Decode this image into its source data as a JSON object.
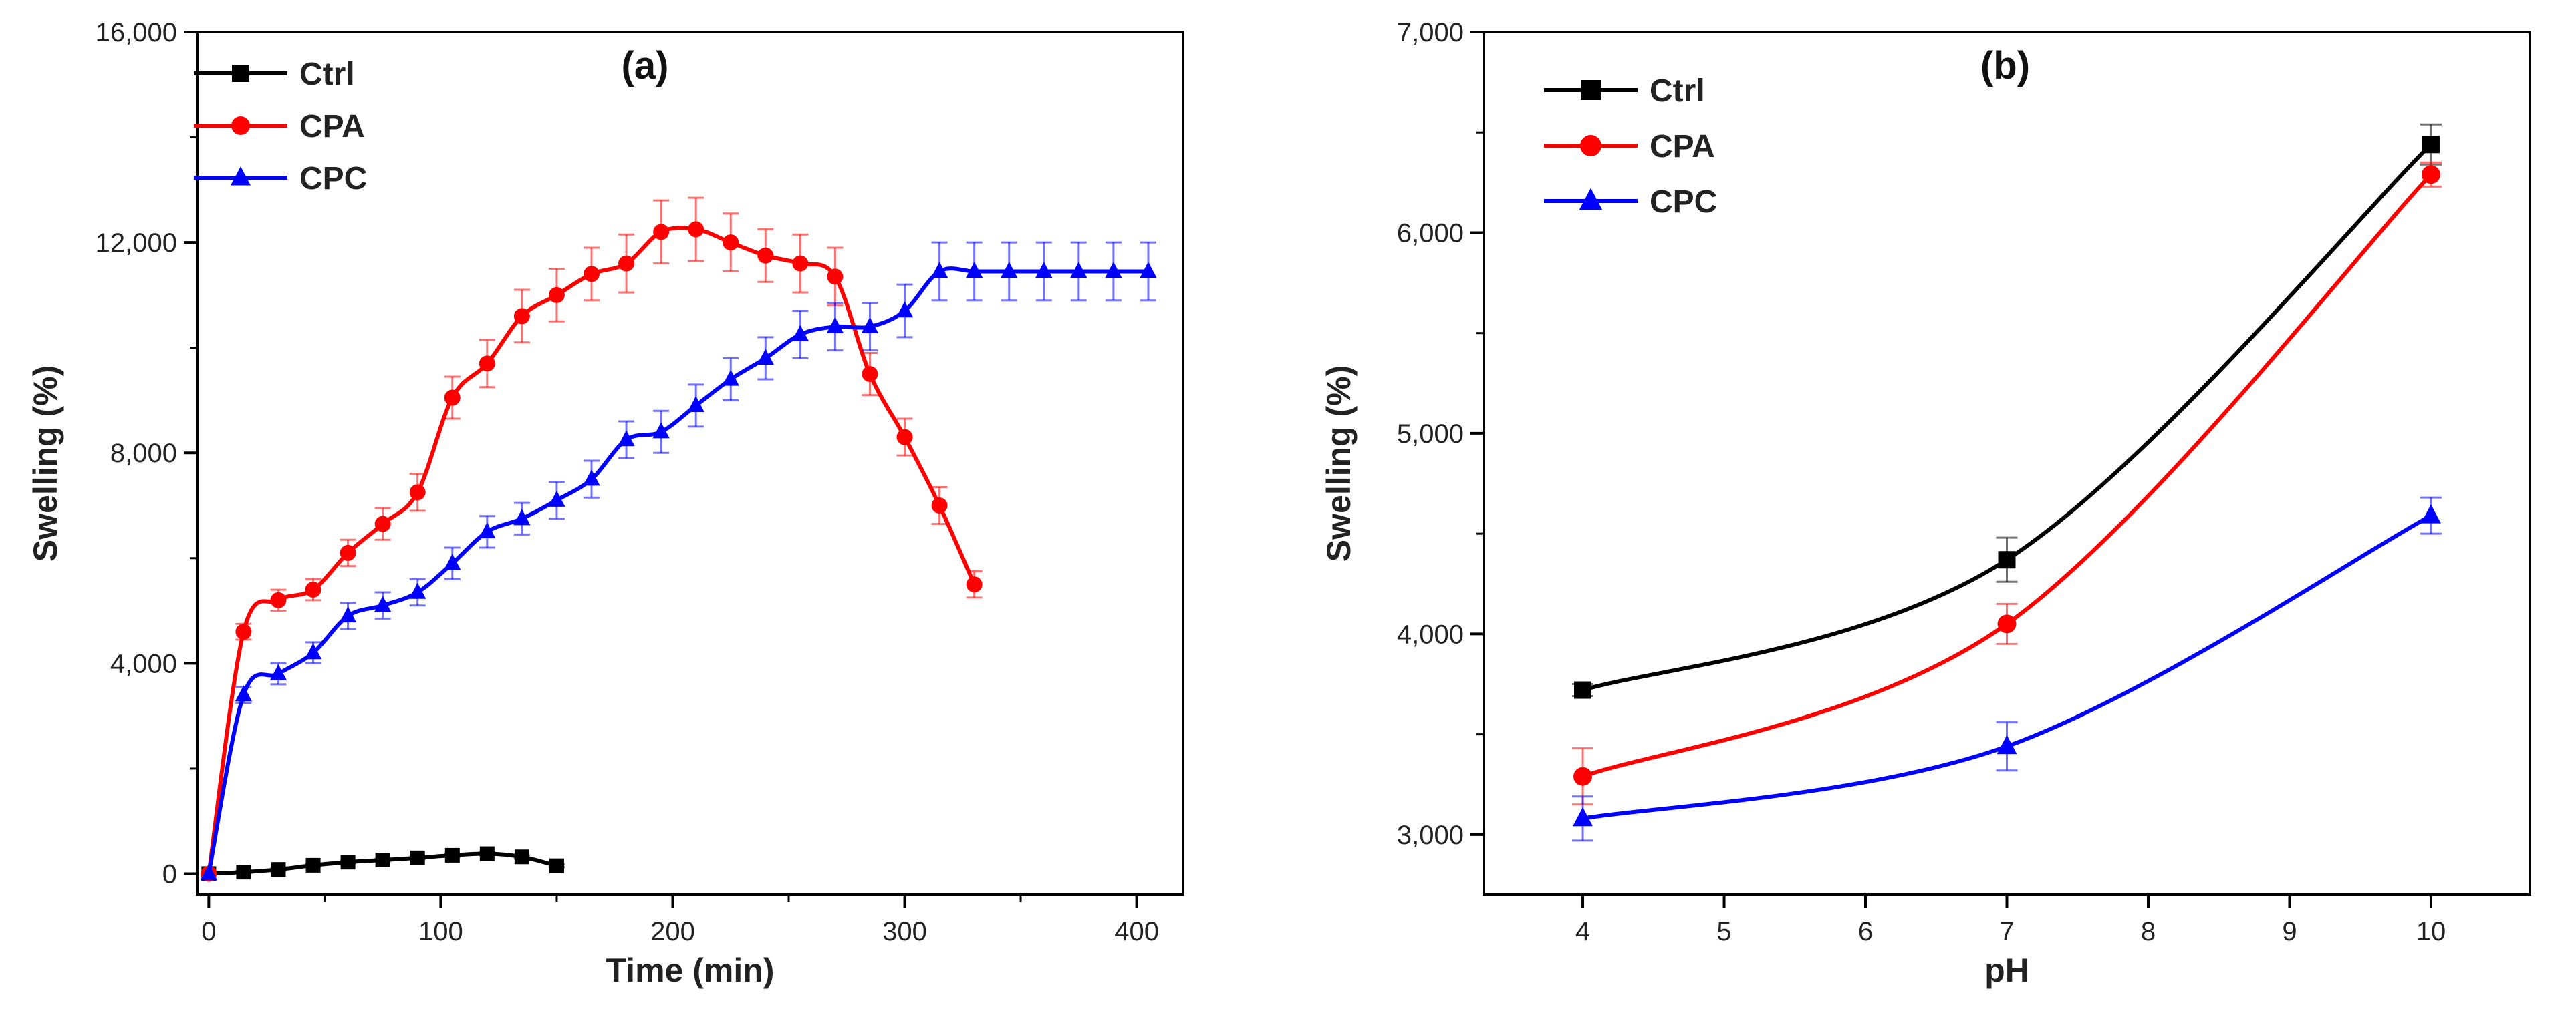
{
  "chart_data": [
    {
      "type": "line",
      "panel_label": "(a)",
      "title": "",
      "xlabel": "Time (min)",
      "ylabel": "Swelling (%)",
      "xlim": [
        -5,
        420
      ],
      "ylim": [
        -400,
        16000
      ],
      "x_ticks": [
        0,
        100,
        200,
        300,
        400
      ],
      "x_tick_labels": [
        "0",
        "100",
        "200",
        "300",
        "400"
      ],
      "y_ticks": [
        0,
        4000,
        8000,
        12000,
        16000
      ],
      "y_tick_labels": [
        "0",
        "4,000",
        "8,000",
        "12,000",
        "16,000"
      ],
      "legend_position": "top-left",
      "series": [
        {
          "name": "Ctrl",
          "color": "#000000",
          "marker": "square",
          "x": [
            0,
            15,
            30,
            45,
            60,
            75,
            90,
            105,
            120,
            135,
            150
          ],
          "values": [
            0,
            30,
            80,
            160,
            220,
            260,
            300,
            350,
            380,
            320,
            150
          ],
          "errors": [
            0,
            20,
            20,
            25,
            25,
            25,
            25,
            30,
            30,
            30,
            25
          ]
        },
        {
          "name": "CPA",
          "color": "#ff0000",
          "marker": "circle",
          "x": [
            0,
            15,
            30,
            45,
            60,
            75,
            90,
            105,
            120,
            135,
            150,
            165,
            180,
            195,
            210,
            225,
            240,
            255,
            270,
            285,
            300,
            315,
            330
          ],
          "values": [
            0,
            4600,
            5200,
            5400,
            6100,
            6650,
            7250,
            9050,
            9700,
            10600,
            11000,
            11400,
            11600,
            12200,
            12250,
            12000,
            11750,
            11600,
            11350,
            9500,
            8300,
            7000,
            5500
          ],
          "errors": [
            0,
            150,
            200,
            200,
            250,
            300,
            350,
            400,
            450,
            500,
            500,
            500,
            550,
            600,
            600,
            550,
            500,
            550,
            550,
            400,
            350,
            350,
            250
          ]
        },
        {
          "name": "CPC",
          "color": "#0000ff",
          "marker": "triangle",
          "x": [
            0,
            15,
            30,
            45,
            60,
            75,
            90,
            105,
            120,
            135,
            150,
            165,
            180,
            195,
            210,
            225,
            240,
            255,
            270,
            285,
            300,
            315,
            330,
            345,
            360,
            375,
            390,
            405
          ],
          "values": [
            0,
            3400,
            3800,
            4200,
            4900,
            5100,
            5350,
            5900,
            6500,
            6750,
            7100,
            7500,
            8250,
            8400,
            8900,
            9400,
            9800,
            10250,
            10400,
            10400,
            10700,
            11450,
            11450,
            11450,
            11450,
            11450,
            11450,
            11450
          ],
          "errors": [
            0,
            150,
            200,
            200,
            250,
            250,
            250,
            300,
            300,
            300,
            350,
            350,
            350,
            400,
            400,
            400,
            400,
            450,
            450,
            450,
            500,
            550,
            550,
            550,
            550,
            550,
            550,
            550
          ]
        }
      ]
    },
    {
      "type": "line",
      "panel_label": "(b)",
      "title": "",
      "xlabel": "pH",
      "ylabel": "Swelling (%)",
      "xlim": [
        3.3,
        10.7
      ],
      "ylim": [
        2700,
        7000
      ],
      "x_ticks": [
        4,
        5,
        6,
        7,
        8,
        9,
        10
      ],
      "x_tick_labels": [
        "4",
        "5",
        "6",
        "7",
        "8",
        "9",
        "10"
      ],
      "y_ticks": [
        3000,
        4000,
        5000,
        6000,
        7000
      ],
      "y_tick_labels": [
        "3,000",
        "4,000",
        "5,000",
        "6,000",
        "7,000"
      ],
      "legend_position": "top-left",
      "series": [
        {
          "name": "Ctrl",
          "color": "#000000",
          "marker": "square",
          "x": [
            4,
            7,
            10
          ],
          "values": [
            3720,
            4370,
            6440
          ],
          "errors": [
            30,
            110,
            100
          ]
        },
        {
          "name": "CPA",
          "color": "#ff0000",
          "marker": "circle",
          "x": [
            4,
            7,
            10
          ],
          "values": [
            3290,
            4050,
            6290
          ],
          "errors": [
            140,
            100,
            60
          ]
        },
        {
          "name": "CPC",
          "color": "#0000ff",
          "marker": "triangle",
          "x": [
            4,
            7,
            10
          ],
          "values": [
            3080,
            3440,
            4590
          ],
          "errors": [
            110,
            120,
            90
          ]
        }
      ]
    }
  ]
}
